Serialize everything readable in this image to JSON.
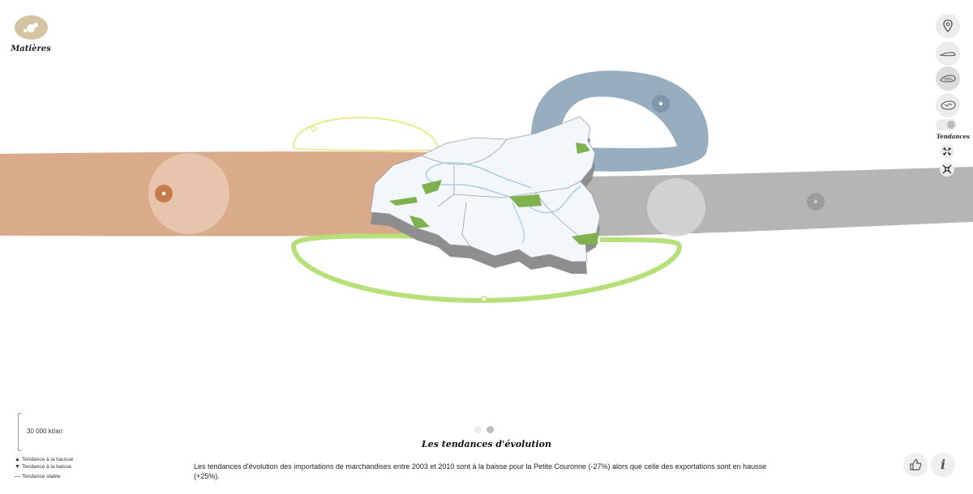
{
  "header": {
    "materials_label": "Matières"
  },
  "toolbar": {
    "icons": [
      "location-pin-icon",
      "land-low-icon",
      "land-mid-icon",
      "land-high-icon",
      "expand-icon",
      "collapse-icon"
    ],
    "trend_label": "Tendances"
  },
  "legend": {
    "scale_label": "30 000 kt/an",
    "trends": [
      {
        "glyph": "▲",
        "label": "Tendance à la hausse"
      },
      {
        "glyph": "▼",
        "label": "Tendance à la baisse"
      },
      {
        "glyph": "—",
        "label": "Tendance stable"
      }
    ]
  },
  "section": {
    "title": "Les tendances d'évolution",
    "body": "Les tendances d'évolution des importations de marchandises entre 2003 et 2010 sont à la baisse pour la Petite Couronne (-27%) alors que celle des exportations sont en hausse (+25%)."
  },
  "pager": {
    "count": 2,
    "active": 2
  },
  "colors": {
    "imports": "#d9ab8a",
    "exports": "#b5b5b5",
    "loop_blue": "#97aec0",
    "loop_green": "#b7e07a",
    "loop_yellow": "#e8ea8c",
    "map_fill": "#f3f6fb",
    "parks": "#7fb14e"
  }
}
